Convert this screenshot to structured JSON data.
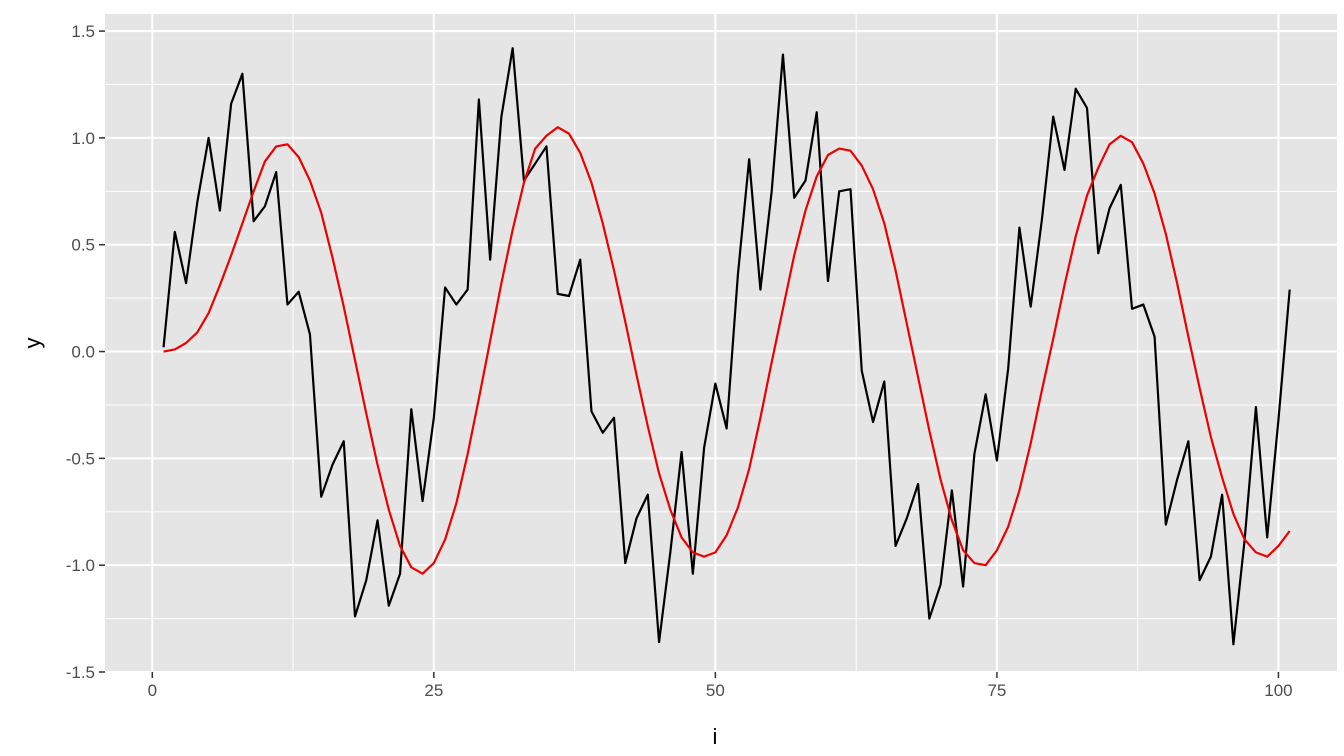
{
  "chart_data": {
    "type": "line",
    "title": "",
    "xlabel": "i",
    "ylabel": "y",
    "xlim": [
      -4.2,
      105.2
    ],
    "ylim": [
      -1.5,
      1.58
    ],
    "grid": true,
    "legend": "none",
    "background": "#e5e5e5",
    "gridline_color": "#ffffff",
    "x_ticks": [
      {
        "value": 0,
        "label": "0"
      },
      {
        "value": 25,
        "label": "25"
      },
      {
        "value": 50,
        "label": "50"
      },
      {
        "value": 75,
        "label": "75"
      },
      {
        "value": 100,
        "label": "100"
      }
    ],
    "y_ticks": [
      {
        "value": -1.5,
        "label": "-1.5"
      },
      {
        "value": -1.0,
        "label": "-1.0"
      },
      {
        "value": -0.5,
        "label": "-0.5"
      },
      {
        "value": 0.0,
        "label": "0.0"
      },
      {
        "value": 0.5,
        "label": "0.5"
      },
      {
        "value": 1.0,
        "label": "1.0"
      },
      {
        "value": 1.5,
        "label": "1.5"
      }
    ],
    "series": [
      {
        "color": "#000000",
        "x_start": 1,
        "x_step": 1,
        "values": [
          0.02,
          0.56,
          0.32,
          0.7,
          1.0,
          0.66,
          1.16,
          1.3,
          0.61,
          0.68,
          0.84,
          0.22,
          0.28,
          0.08,
          -0.68,
          -0.53,
          -0.42,
          -1.24,
          -1.07,
          -0.79,
          -1.19,
          -1.04,
          -0.27,
          -0.7,
          -0.31,
          0.3,
          0.22,
          0.29,
          1.18,
          0.43,
          1.1,
          1.42,
          0.8,
          0.88,
          0.96,
          0.27,
          0.26,
          0.43,
          -0.28,
          -0.38,
          -0.31,
          -0.99,
          -0.78,
          -0.67,
          -1.36,
          -0.94,
          -0.47,
          -1.04,
          -0.45,
          -0.15,
          -0.36,
          0.36,
          0.9,
          0.29,
          0.75,
          1.39,
          0.72,
          0.8,
          1.12,
          0.33,
          0.75,
          0.76,
          -0.09,
          -0.33,
          -0.14,
          -0.91,
          -0.78,
          -0.62,
          -1.25,
          -1.09,
          -0.65,
          -1.1,
          -0.48,
          -0.2,
          -0.51,
          -0.08,
          0.58,
          0.21,
          0.62,
          1.1,
          0.85,
          1.23,
          1.14,
          0.46,
          0.67,
          0.78,
          0.2,
          0.22,
          0.07,
          -0.81,
          -0.6,
          -0.42,
          -1.07,
          -0.96,
          -0.67,
          -1.37,
          -0.88,
          -0.26,
          -0.87,
          -0.32,
          0.29
        ]
      },
      {
        "color": "#ee0000",
        "x_start": 1,
        "x_step": 1,
        "values": [
          0.0,
          0.01,
          0.04,
          0.09,
          0.18,
          0.31,
          0.45,
          0.6,
          0.75,
          0.89,
          0.96,
          0.97,
          0.91,
          0.8,
          0.65,
          0.44,
          0.21,
          -0.04,
          -0.29,
          -0.53,
          -0.74,
          -0.91,
          -1.01,
          -1.04,
          -0.99,
          -0.88,
          -0.71,
          -0.48,
          -0.22,
          0.05,
          0.32,
          0.57,
          0.79,
          0.95,
          1.01,
          1.05,
          1.02,
          0.93,
          0.79,
          0.6,
          0.38,
          0.14,
          -0.11,
          -0.35,
          -0.57,
          -0.74,
          -0.87,
          -0.94,
          -0.96,
          -0.94,
          -0.86,
          -0.73,
          -0.55,
          -0.31,
          -0.05,
          0.2,
          0.45,
          0.66,
          0.82,
          0.92,
          0.95,
          0.94,
          0.87,
          0.76,
          0.6,
          0.38,
          0.13,
          -0.12,
          -0.37,
          -0.6,
          -0.79,
          -0.93,
          -0.99,
          -1.0,
          -0.93,
          -0.82,
          -0.65,
          -0.43,
          -0.18,
          0.06,
          0.31,
          0.54,
          0.73,
          0.86,
          0.97,
          1.01,
          0.98,
          0.88,
          0.74,
          0.55,
          0.32,
          0.07,
          -0.17,
          -0.4,
          -0.59,
          -0.76,
          -0.88,
          -0.94,
          -0.96,
          -0.91,
          -0.84
        ]
      }
    ]
  }
}
